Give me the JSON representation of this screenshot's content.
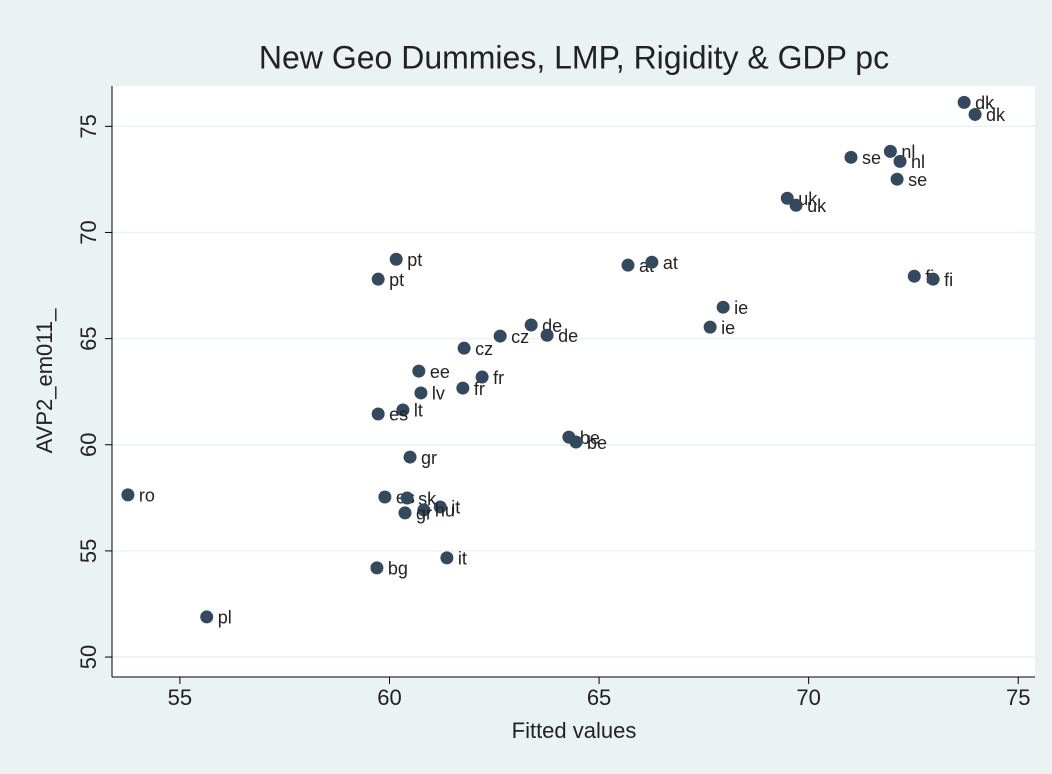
{
  "chart_data": {
    "type": "scatter",
    "title": "New Geo Dummies, LMP, Rigidity & GDP pc",
    "x_label": "Fitted values",
    "y_label": "AVP2_em011_",
    "x": [
      73.71,
      73.97,
      71.01,
      71.95,
      72.18,
      72.11,
      69.49,
      69.7,
      60.16,
      59.73,
      65.69,
      66.26,
      72.52,
      72.97,
      67.96,
      67.65,
      63.38,
      63.76,
      62.64,
      61.78,
      60.7,
      62.21,
      61.75,
      60.75,
      60.32,
      59.73,
      64.28,
      64.45,
      60.49,
      53.76,
      59.89,
      60.42,
      61.21,
      60.82,
      60.37,
      61.37,
      59.7,
      55.64
    ],
    "values": [
      76.13,
      75.56,
      73.54,
      73.82,
      73.35,
      72.51,
      71.61,
      71.28,
      68.74,
      67.8,
      68.46,
      68.6,
      67.94,
      67.8,
      66.48,
      65.54,
      65.64,
      65.16,
      65.12,
      64.55,
      63.47,
      63.19,
      62.67,
      62.44,
      61.64,
      61.45,
      60.36,
      60.13,
      59.42,
      57.64,
      57.54,
      57.49,
      57.07,
      56.93,
      56.79,
      54.67,
      54.2,
      51.89
    ],
    "labels": [
      "dk",
      "dk",
      "se",
      "nl",
      "nl",
      "se",
      "uk",
      "uk",
      "pt",
      "pt",
      "at",
      "at",
      "fi",
      "fi",
      "ie",
      "ie",
      "de",
      "de",
      "cz",
      "cz",
      "ee",
      "fr",
      "fr",
      "lv",
      "lt",
      "es",
      "be",
      "be",
      "gr",
      "ro",
      "es",
      "sk",
      "it",
      "hu",
      "gr",
      "it",
      "bg",
      "pl"
    ],
    "color": "#34495e",
    "xlim": [
      53.38,
      75.4
    ],
    "ylim": [
      49.06,
      76.9
    ],
    "xticks": [
      55,
      60,
      65,
      70,
      75
    ],
    "yticks": [
      50,
      55,
      60,
      65,
      70,
      75
    ],
    "grid": true
  }
}
